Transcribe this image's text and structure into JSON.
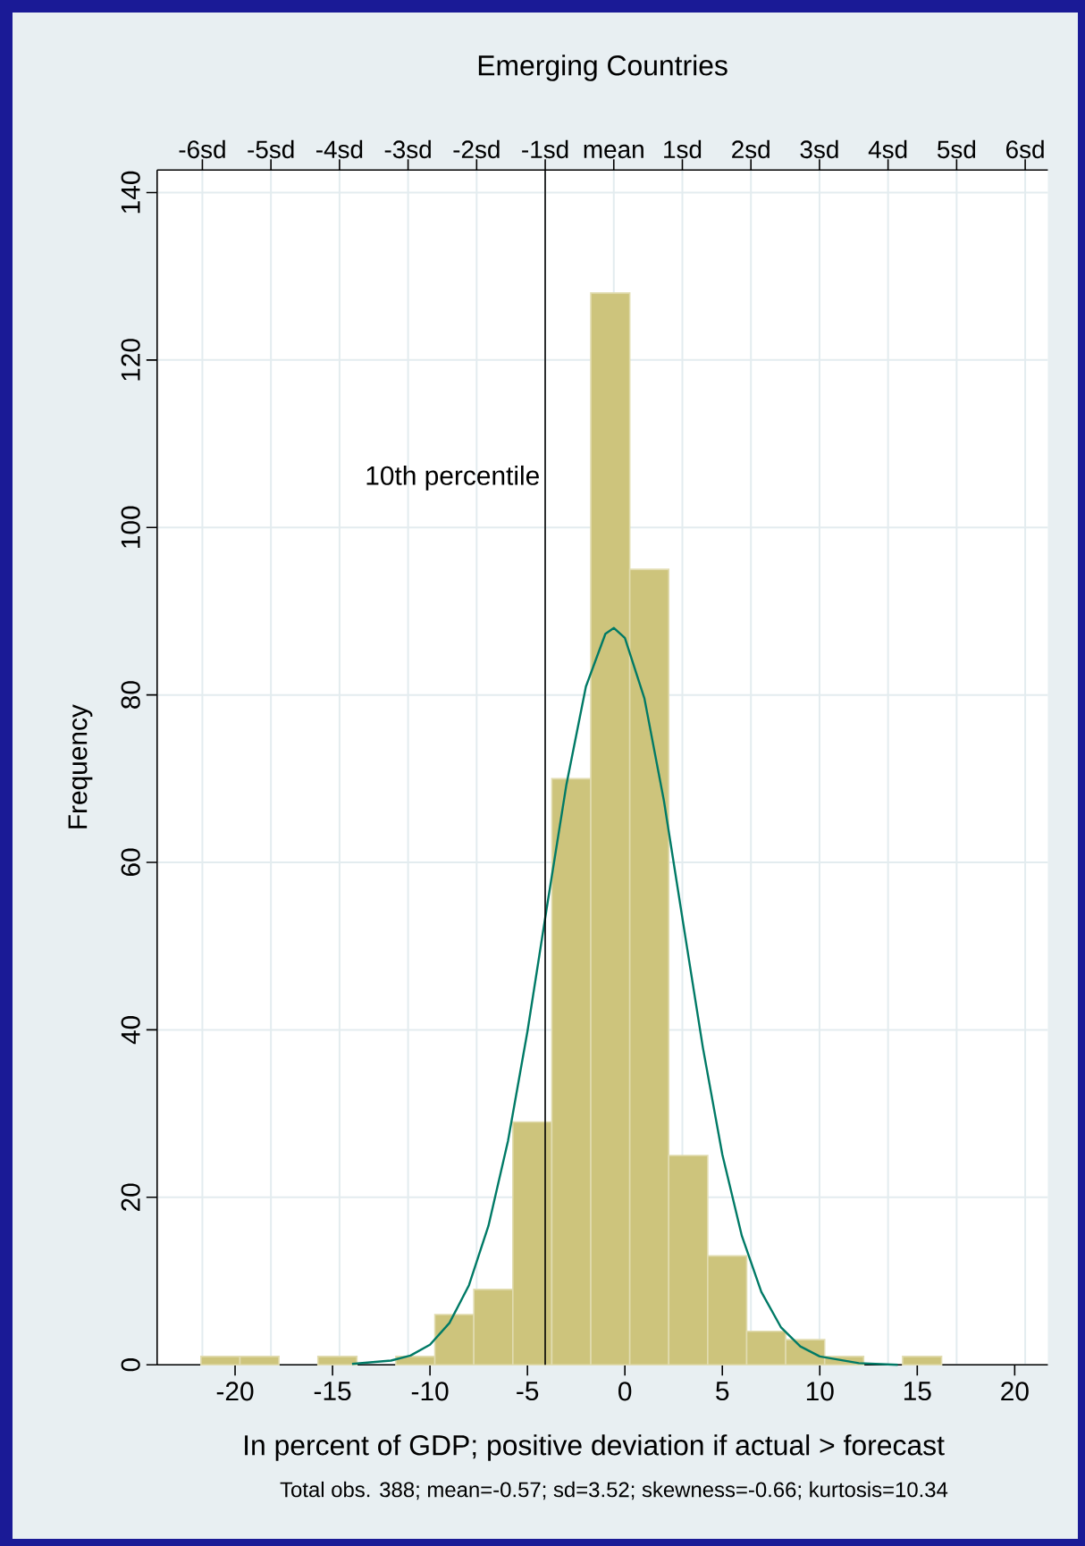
{
  "chart_data": {
    "type": "histogram",
    "title": "Emerging Countries",
    "xlabel": "In percent of GDP; positive deviation if actual > forecast",
    "ylabel": "Frequency",
    "annotations": [
      "Total obs. 388; mean=-0.57; sd=3.52; skewness=-0.66; kurtosis=10.34"
    ],
    "series": [
      {
        "color": "#cdc47c",
        "bins": [
          -21.75,
          -19.75,
          -17.75,
          -15.75,
          -13.75,
          -11.75,
          -9.75,
          -7.75,
          -5.75,
          -3.75,
          -1.75,
          0.25,
          2.25,
          4.25,
          6.25,
          8.25,
          10.25,
          12.25,
          14.25,
          16.25
        ],
        "values": [
          1,
          1,
          0,
          1,
          0,
          1,
          6,
          9,
          29,
          70,
          128,
          95,
          25,
          13,
          4,
          3,
          1,
          0,
          1
        ]
      },
      {
        "type": "line",
        "color": "#007a66",
        "x": [
          -14,
          -12,
          -11,
          -10,
          -9,
          -8,
          -7,
          -6,
          -5,
          -4,
          -3,
          -2,
          -1,
          -0.57,
          0,
          1,
          2,
          3,
          4,
          5,
          6,
          7,
          8,
          9,
          10,
          12,
          14
        ],
        "values": [
          0.1,
          0.5,
          1.1,
          2.4,
          5,
          9.5,
          16.6,
          26.7,
          39.8,
          54.7,
          69.3,
          81,
          87.3,
          88,
          86.8,
          79.6,
          67.4,
          52.6,
          37.9,
          25.1,
          15.4,
          8.7,
          4.5,
          2.2,
          1,
          0.2,
          0
        ]
      }
    ],
    "xlim": [
      -24,
      21.7
    ],
    "xticks": [
      -20,
      -15,
      -10,
      -5,
      0,
      5,
      10,
      15,
      20
    ],
    "x2lim": [
      -6.66,
      6.33
    ],
    "x2ticks": [
      {
        "value": -6,
        "label": "-6sd"
      },
      {
        "value": -5,
        "label": "-5sd"
      },
      {
        "value": -4,
        "label": "-4sd"
      },
      {
        "value": -3,
        "label": "-3sd"
      },
      {
        "value": -2,
        "label": "-2sd"
      },
      {
        "value": -1,
        "label": "-1sd"
      },
      {
        "value": 0,
        "label": "mean"
      },
      {
        "value": 1,
        "label": "1sd"
      },
      {
        "value": 2,
        "label": "2sd"
      },
      {
        "value": 3,
        "label": "3sd"
      },
      {
        "value": 4,
        "label": "4sd"
      },
      {
        "value": 5,
        "label": "5sd"
      },
      {
        "value": 6,
        "label": "6sd"
      }
    ],
    "ylim": [
      0,
      142.7
    ],
    "yticks": [
      0,
      20,
      40,
      60,
      80,
      100,
      120,
      140
    ],
    "ref_lines": [
      {
        "axis": "x",
        "value": -4.09,
        "color": "#000000",
        "label": "10th percentile"
      }
    ],
    "grid": true,
    "legend": false,
    "marker": "none"
  }
}
